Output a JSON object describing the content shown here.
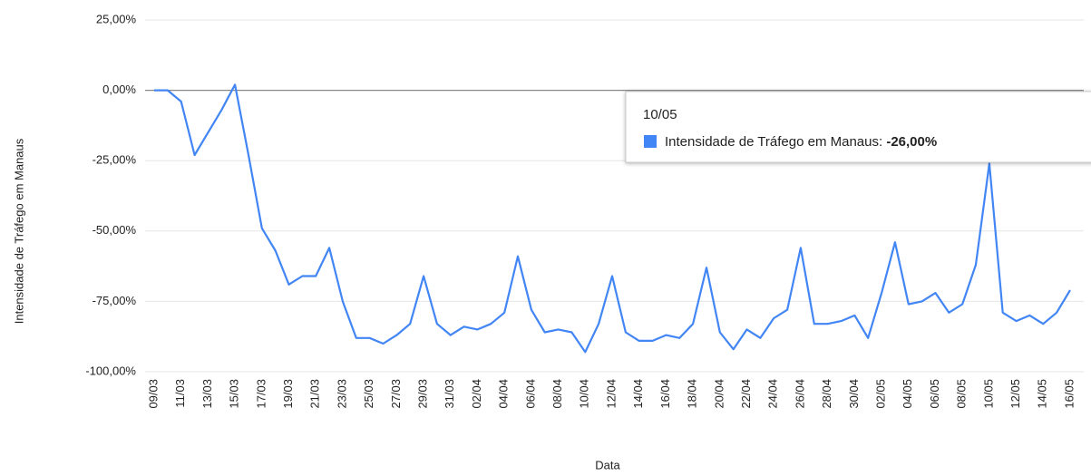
{
  "chart_data": {
    "type": "line",
    "x_label": "Data",
    "y_label": "Intensidade de Tráfego em Manaus",
    "categories": [
      "09/03",
      null,
      "11/03",
      null,
      "13/03",
      null,
      "15/03",
      null,
      "17/03",
      null,
      "19/03",
      null,
      "21/03",
      null,
      "23/03",
      null,
      "25/03",
      null,
      "27/03",
      null,
      "29/03",
      null,
      "31/03",
      null,
      "02/04",
      null,
      "04/04",
      null,
      "06/04",
      null,
      "08/04",
      null,
      "10/04",
      null,
      "12/04",
      null,
      "14/04",
      null,
      "16/04",
      null,
      "18/04",
      null,
      "20/04",
      null,
      "22/04",
      null,
      "24/04",
      null,
      "26/04",
      null,
      "28/04",
      null,
      "30/04",
      null,
      "02/05",
      null,
      "04/05",
      null,
      "06/05",
      null,
      "08/05",
      null,
      "10/05",
      null,
      "12/05",
      null,
      "14/05",
      null,
      "16/05"
    ],
    "series": [
      {
        "name": "Intensidade de Tráfego em Manaus",
        "color": "#4285f4",
        "values": [
          0,
          0,
          -4,
          -23,
          -15,
          -7,
          2,
          -23,
          -49,
          -57,
          -69,
          -66,
          -66,
          -56,
          -75,
          -88,
          -88,
          -90,
          -87,
          -83,
          -66,
          -83,
          -87,
          -84,
          -85,
          -83,
          -79,
          -59,
          -78,
          -86,
          -85,
          -86,
          -93,
          -83,
          -66,
          -86,
          -89,
          -89,
          -87,
          -88,
          -83,
          -63,
          -86,
          -92,
          -85,
          -88,
          -81,
          -78,
          -56,
          -83,
          -83,
          -82,
          -80,
          -88,
          -72,
          -54,
          -76,
          -75,
          -72,
          -79,
          -76,
          -62,
          -26,
          -79,
          -82,
          -80,
          -83,
          -79,
          -71
        ]
      }
    ],
    "ylim": [
      -100,
      25
    ],
    "yticks": [
      {
        "value": -100,
        "label": "-100,00%"
      },
      {
        "value": -75,
        "label": "-75,00%"
      },
      {
        "value": -50,
        "label": "-50,00%"
      },
      {
        "value": -25,
        "label": "-25,00%"
      },
      {
        "value": 0,
        "label": "0,00%"
      },
      {
        "value": 25,
        "label": "25,00%"
      }
    ],
    "grid": true,
    "tooltip": {
      "title": "10/05",
      "label": "Intensidade de Tráfego em Manaus:",
      "value_label": "-26,00%"
    }
  }
}
